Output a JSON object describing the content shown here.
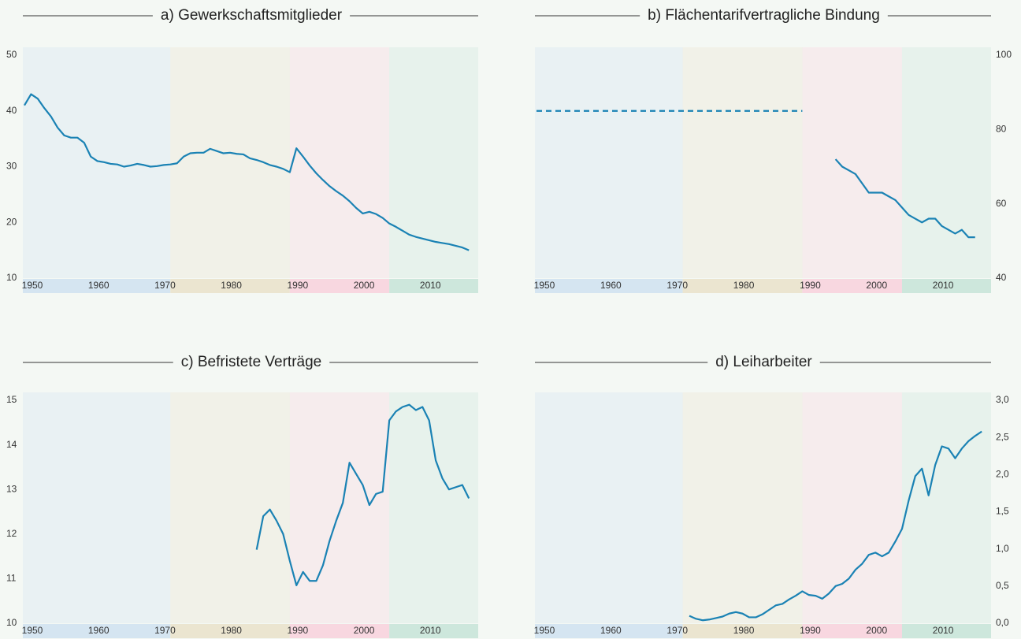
{
  "chart_data": [
    {
      "type": "line",
      "title": "a) Gewerkschaftsmitglieder",
      "yaxis": "left",
      "x": [
        1950,
        1951,
        1952,
        1953,
        1954,
        1955,
        1956,
        1957,
        1958,
        1959,
        1960,
        1961,
        1962,
        1963,
        1964,
        1965,
        1966,
        1967,
        1968,
        1969,
        1970,
        1971,
        1972,
        1973,
        1974,
        1975,
        1976,
        1977,
        1978,
        1979,
        1980,
        1981,
        1982,
        1983,
        1984,
        1985,
        1986,
        1987,
        1988,
        1989,
        1990,
        1991,
        1992,
        1993,
        1994,
        1995,
        1996,
        1997,
        1998,
        1999,
        2000,
        2001,
        2002,
        2003,
        2004,
        2005,
        2006,
        2007,
        2008,
        2009,
        2010,
        2011,
        2012,
        2013,
        2014,
        2015,
        2016,
        2017
      ],
      "series": [
        {
          "color": "#1a82b4",
          "dashed": false,
          "values": [
            41,
            43,
            42.2,
            40.5,
            39,
            37,
            35.6,
            35.2,
            35.2,
            34.3,
            31.8,
            31,
            30.8,
            30.5,
            30.4,
            30,
            30.2,
            30.5,
            30.3,
            30,
            30.1,
            30.3,
            30.4,
            30.6,
            31.8,
            32.4,
            32.5,
            32.5,
            33.2,
            32.8,
            32.4,
            32.5,
            32.3,
            32.2,
            31.5,
            31.2,
            30.8,
            30.3,
            30,
            29.6,
            29,
            33.3,
            31.8,
            30.2,
            28.8,
            27.6,
            26.5,
            25.6,
            24.8,
            23.8,
            22.6,
            21.6,
            21.9,
            21.5,
            20.8,
            19.8,
            19.2,
            18.5,
            17.8,
            17.4,
            17.1,
            16.8,
            16.5,
            16.3,
            16.1,
            15.8,
            15.5,
            15
          ]
        }
      ],
      "xlim": [
        1950,
        2018.4
      ],
      "xticks": [
        1950,
        1960,
        1970,
        1980,
        1990,
        2000,
        2010
      ],
      "ylim": [
        10,
        50
      ],
      "yticks": [
        10,
        20,
        30,
        40,
        50
      ],
      "bands": [
        {
          "start": 1950,
          "end": 1972,
          "color": "#d5e5f1"
        },
        {
          "start": 1972,
          "end": 1990,
          "color": "#ebe5d0"
        },
        {
          "start": 1990,
          "end": 2005,
          "color": "#f8d7e0"
        },
        {
          "start": 2005,
          "end": 2018.4,
          "color": "#cde7dc"
        }
      ]
    },
    {
      "type": "line",
      "title": "b) Flächentarifvertragliche Bindung",
      "yaxis": "right",
      "x": [
        1950,
        1951,
        1952,
        1953,
        1954,
        1955,
        1956,
        1957,
        1958,
        1959,
        1960,
        1961,
        1962,
        1963,
        1964,
        1965,
        1966,
        1967,
        1968,
        1969,
        1970,
        1971,
        1972,
        1973,
        1974,
        1975,
        1976,
        1977,
        1978,
        1979,
        1980,
        1981,
        1982,
        1983,
        1984,
        1985,
        1986,
        1987,
        1988,
        1989,
        1990,
        1991,
        1992,
        1993,
        1994,
        1995,
        1996,
        1997,
        1998,
        1999,
        2000,
        2001,
        2002,
        2003,
        2004,
        2005,
        2006,
        2007,
        2008,
        2009,
        2010,
        2011,
        2012,
        2013,
        2014,
        2015,
        2016
      ],
      "series": [
        {
          "color": "#1a82b4",
          "dashed": true,
          "values": [
            85,
            85,
            85,
            85,
            85,
            85,
            85,
            85,
            85,
            85,
            85,
            85,
            85,
            85,
            85,
            85,
            85,
            85,
            85,
            85,
            85,
            85,
            85,
            85,
            85,
            85,
            85,
            85,
            85,
            85,
            85,
            85,
            85,
            85,
            85,
            85,
            85,
            85,
            85,
            85,
            85,
            null,
            null,
            null,
            null,
            null,
            null,
            null,
            null,
            null,
            null,
            null,
            null,
            null,
            null,
            null,
            null,
            null,
            null,
            null,
            null,
            null,
            null,
            null,
            null,
            null,
            null
          ]
        },
        {
          "color": "#1a82b4",
          "dashed": false,
          "values": [
            null,
            null,
            null,
            null,
            null,
            null,
            null,
            null,
            null,
            null,
            null,
            null,
            null,
            null,
            null,
            null,
            null,
            null,
            null,
            null,
            null,
            null,
            null,
            null,
            null,
            null,
            null,
            null,
            null,
            null,
            null,
            null,
            null,
            null,
            null,
            null,
            null,
            null,
            null,
            null,
            null,
            null,
            null,
            null,
            null,
            72,
            70,
            69,
            68,
            65.5,
            63,
            63,
            63,
            62,
            61,
            59,
            57,
            56,
            55,
            56,
            56,
            54,
            53,
            52,
            53,
            51,
            51
          ]
        }
      ],
      "xlim": [
        1950,
        2018.4
      ],
      "xticks": [
        1950,
        1960,
        1970,
        1980,
        1990,
        2000,
        2010
      ],
      "ylim": [
        40,
        100
      ],
      "yticks": [
        40,
        60,
        80,
        100
      ],
      "bands": [
        {
          "start": 1950,
          "end": 1972,
          "color": "#d5e5f1"
        },
        {
          "start": 1972,
          "end": 1990,
          "color": "#ebe5d0"
        },
        {
          "start": 1990,
          "end": 2005,
          "color": "#f8d7e0"
        },
        {
          "start": 2005,
          "end": 2018.4,
          "color": "#cde7dc"
        }
      ]
    },
    {
      "type": "line",
      "title": "c) Befristete Verträge",
      "yaxis": "left",
      "x": [
        1985,
        1986,
        1987,
        1988,
        1989,
        1990,
        1991,
        1992,
        1993,
        1994,
        1995,
        1996,
        1997,
        1998,
        1999,
        2000,
        2001,
        2002,
        2003,
        2004,
        2005,
        2006,
        2007,
        2008,
        2009,
        2010,
        2011,
        2012,
        2013,
        2014,
        2015,
        2016,
        2017
      ],
      "series": [
        {
          "color": "#1a82b4",
          "dashed": false,
          "values": [
            11.65,
            12.4,
            12.55,
            12.3,
            12.0,
            11.4,
            10.85,
            11.15,
            10.95,
            10.95,
            11.3,
            11.85,
            12.3,
            12.7,
            13.6,
            13.35,
            13.1,
            12.65,
            12.9,
            12.95,
            14.55,
            14.75,
            14.85,
            14.9,
            14.78,
            14.85,
            14.55,
            13.65,
            13.25,
            13,
            13.05,
            13.1,
            12.8
          ]
        }
      ],
      "xlim": [
        1950,
        2018.4
      ],
      "xticks": [
        1950,
        1960,
        1970,
        1980,
        1990,
        2000,
        2010
      ],
      "ylim": [
        10,
        15
      ],
      "yticks": [
        10,
        11,
        12,
        13,
        14,
        15
      ],
      "bands": [
        {
          "start": 1950,
          "end": 1972,
          "color": "#d5e5f1"
        },
        {
          "start": 1972,
          "end": 1990,
          "color": "#ebe5d0"
        },
        {
          "start": 1990,
          "end": 2005,
          "color": "#f8d7e0"
        },
        {
          "start": 2005,
          "end": 2018.4,
          "color": "#cde7dc"
        }
      ]
    },
    {
      "type": "line",
      "title": "d) Leiharbeiter",
      "yaxis": "right",
      "x": [
        1973,
        1974,
        1975,
        1976,
        1977,
        1978,
        1979,
        1980,
        1981,
        1982,
        1983,
        1984,
        1985,
        1986,
        1987,
        1988,
        1989,
        1990,
        1991,
        1992,
        1993,
        1994,
        1995,
        1996,
        1997,
        1998,
        1999,
        2000,
        2001,
        2002,
        2003,
        2004,
        2005,
        2006,
        2007,
        2008,
        2009,
        2010,
        2011,
        2012,
        2013,
        2014,
        2015,
        2016,
        2017
      ],
      "series": [
        {
          "color": "#1a82b4",
          "dashed": false,
          "values": [
            0.1,
            0.06,
            0.04,
            0.05,
            0.07,
            0.09,
            0.13,
            0.15,
            0.13,
            0.08,
            0.08,
            0.12,
            0.18,
            0.24,
            0.26,
            0.32,
            0.37,
            0.43,
            0.38,
            0.37,
            0.33,
            0.4,
            0.5,
            0.53,
            0.6,
            0.72,
            0.8,
            0.92,
            0.95,
            0.9,
            0.95,
            1.1,
            1.27,
            1.65,
            1.98,
            2.08,
            1.72,
            2.13,
            2.38,
            2.35,
            2.22,
            2.35,
            2.45,
            2.52,
            2.58
          ]
        }
      ],
      "xlim": [
        1950,
        2018.4
      ],
      "xticks": [
        1950,
        1960,
        1970,
        1980,
        1990,
        2000,
        2010
      ],
      "ylim": [
        0,
        3
      ],
      "yticks": [
        {
          "value": 0,
          "label": "0,0"
        },
        {
          "value": 0.5,
          "label": "0,5"
        },
        {
          "value": 1,
          "label": "1,0"
        },
        {
          "value": 1.5,
          "label": "1,5"
        },
        {
          "value": 2,
          "label": "2,0"
        },
        {
          "value": 2.5,
          "label": "2,5"
        },
        {
          "value": 3,
          "label": "3,0"
        }
      ],
      "bands": [
        {
          "start": 1950,
          "end": 1972,
          "color": "#d5e5f1"
        },
        {
          "start": 1972,
          "end": 1990,
          "color": "#ebe5d0"
        },
        {
          "start": 1990,
          "end": 2005,
          "color": "#f8d7e0"
        },
        {
          "start": 2005,
          "end": 2018.4,
          "color": "#cde7dc"
        }
      ]
    }
  ]
}
